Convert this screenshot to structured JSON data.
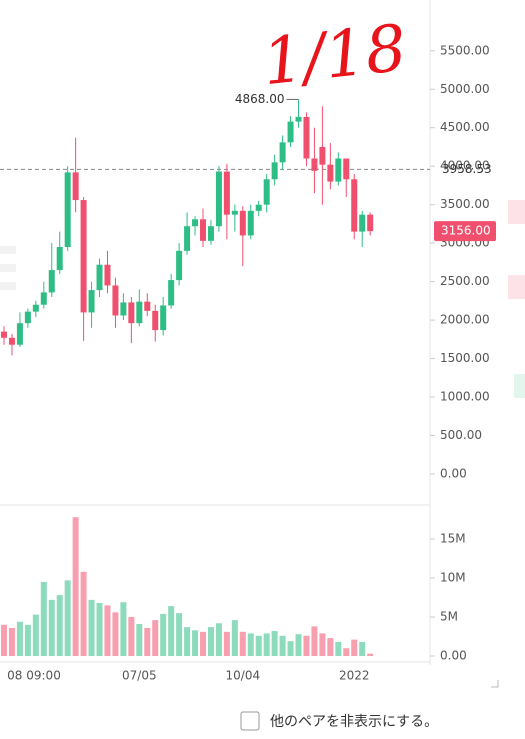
{
  "chart_data": [
    {
      "type": "candlestick",
      "categories": [
        null,
        null,
        null,
        "08 09:00",
        null,
        null,
        null,
        null,
        null,
        null,
        null,
        null,
        null,
        null,
        null,
        null,
        null,
        "07/05",
        null,
        null,
        null,
        null,
        null,
        null,
        null,
        null,
        null,
        null,
        null,
        null,
        "10/04",
        null,
        null,
        null,
        null,
        null,
        null,
        null,
        null,
        null,
        null,
        null,
        null,
        null,
        "2022",
        null,
        null
      ],
      "open": [
        1850,
        1770,
        1680,
        1960,
        2110,
        2200,
        2360,
        2650,
        2950,
        3920,
        3560,
        2100,
        2390,
        2720,
        2450,
        2060,
        2230,
        1960,
        2240,
        2120,
        1870,
        2190,
        2520,
        2900,
        3220,
        3310,
        3030,
        3220,
        3930,
        3370,
        3420,
        3100,
        3420,
        3500,
        3830,
        4050,
        4310,
        4580,
        4640,
        4100,
        4250,
        4020,
        3800,
        4100,
        3830,
        3150,
        3370
      ],
      "high": [
        1920,
        1820,
        2100,
        2150,
        2250,
        2500,
        3000,
        3150,
        4000,
        4370,
        3600,
        2500,
        2800,
        2900,
        2550,
        2350,
        2300,
        2400,
        2350,
        2200,
        2300,
        2600,
        3000,
        3400,
        3350,
        3450,
        3300,
        4000,
        4030,
        3500,
        3480,
        3500,
        3550,
        3900,
        4150,
        4400,
        4650,
        4868,
        4700,
        4500,
        4780,
        4300,
        4180,
        4100,
        3900,
        3420,
        3400
      ],
      "low": [
        1680,
        1540,
        1650,
        1900,
        2040,
        2150,
        2300,
        2600,
        2900,
        3400,
        1730,
        1900,
        2300,
        2350,
        1900,
        2000,
        1700,
        1920,
        2050,
        1720,
        1800,
        2150,
        2450,
        2850,
        3100,
        2950,
        2980,
        3150,
        3050,
        3150,
        2700,
        3050,
        3350,
        3400,
        3750,
        3950,
        4250,
        4500,
        4000,
        3650,
        3500,
        3700,
        3750,
        3600,
        3050,
        2950,
        3100
      ],
      "close": [
        1770,
        1680,
        1960,
        2110,
        2200,
        2360,
        2650,
        2950,
        3920,
        3560,
        2100,
        2390,
        2720,
        2450,
        2060,
        2230,
        1960,
        2240,
        2120,
        1870,
        2190,
        2520,
        2900,
        3220,
        3310,
        3030,
        3220,
        3930,
        3370,
        3420,
        3100,
        3420,
        3500,
        3830,
        4050,
        4310,
        4580,
        4640,
        4100,
        3940,
        4020,
        3800,
        4100,
        3830,
        3150,
        3370,
        3156
      ],
      "up_color": "#2ebd85",
      "down_color": "#f0506e",
      "ylim": [
        -403,
        6160
      ],
      "yticks": [
        {
          "value": 0,
          "label": "0.00"
        },
        {
          "value": 500,
          "label": "500.00"
        },
        {
          "value": 1000,
          "label": "1000.00"
        },
        {
          "value": 1500,
          "label": "1500.00"
        },
        {
          "value": 2000,
          "label": "2000.00"
        },
        {
          "value": 2500,
          "label": "2500.00"
        },
        {
          "value": 3000,
          "label": "3000.00"
        },
        {
          "value": 3500,
          "label": "3500.00"
        },
        {
          "value": 4000,
          "label": "4000.00"
        },
        {
          "value": 4500,
          "label": "4500.00"
        },
        {
          "value": 5000,
          "label": "5000.00"
        },
        {
          "value": 5500,
          "label": "5500.00"
        }
      ],
      "high_marker": {
        "value": 4868,
        "label": "4868.00"
      },
      "reference_line": {
        "value": 3958.53,
        "label": "3958.53"
      },
      "last_price": {
        "value": 3156,
        "label": "3156.00"
      },
      "annotation": "1/18"
    },
    {
      "type": "bar",
      "values": [
        4000000,
        3600000,
        4400000,
        4000000,
        5300000,
        9500000,
        7200000,
        7800000,
        9700000,
        17800000,
        10800000,
        7200000,
        6800000,
        6500000,
        5600000,
        6900000,
        5000000,
        4100000,
        3600000,
        4600000,
        5400000,
        6400000,
        5500000,
        3700000,
        3300000,
        3100000,
        3700000,
        4200000,
        3100000,
        4600000,
        3100000,
        2900000,
        2600000,
        2900000,
        3200000,
        2600000,
        1900000,
        2800000,
        2600000,
        3800000,
        2900000,
        2300000,
        1800000,
        1000000,
        2100000,
        1800000,
        300000
      ],
      "ylim": [
        -510000,
        19360000
      ],
      "yticks": [
        {
          "value": 0,
          "label": "0.00"
        },
        {
          "value": 5000000,
          "label": "5M"
        },
        {
          "value": 10000000,
          "label": "10M"
        },
        {
          "value": 15000000,
          "label": "15M"
        }
      ]
    }
  ],
  "footer": {
    "checkbox_label": "他のペアを非表示にする。"
  }
}
